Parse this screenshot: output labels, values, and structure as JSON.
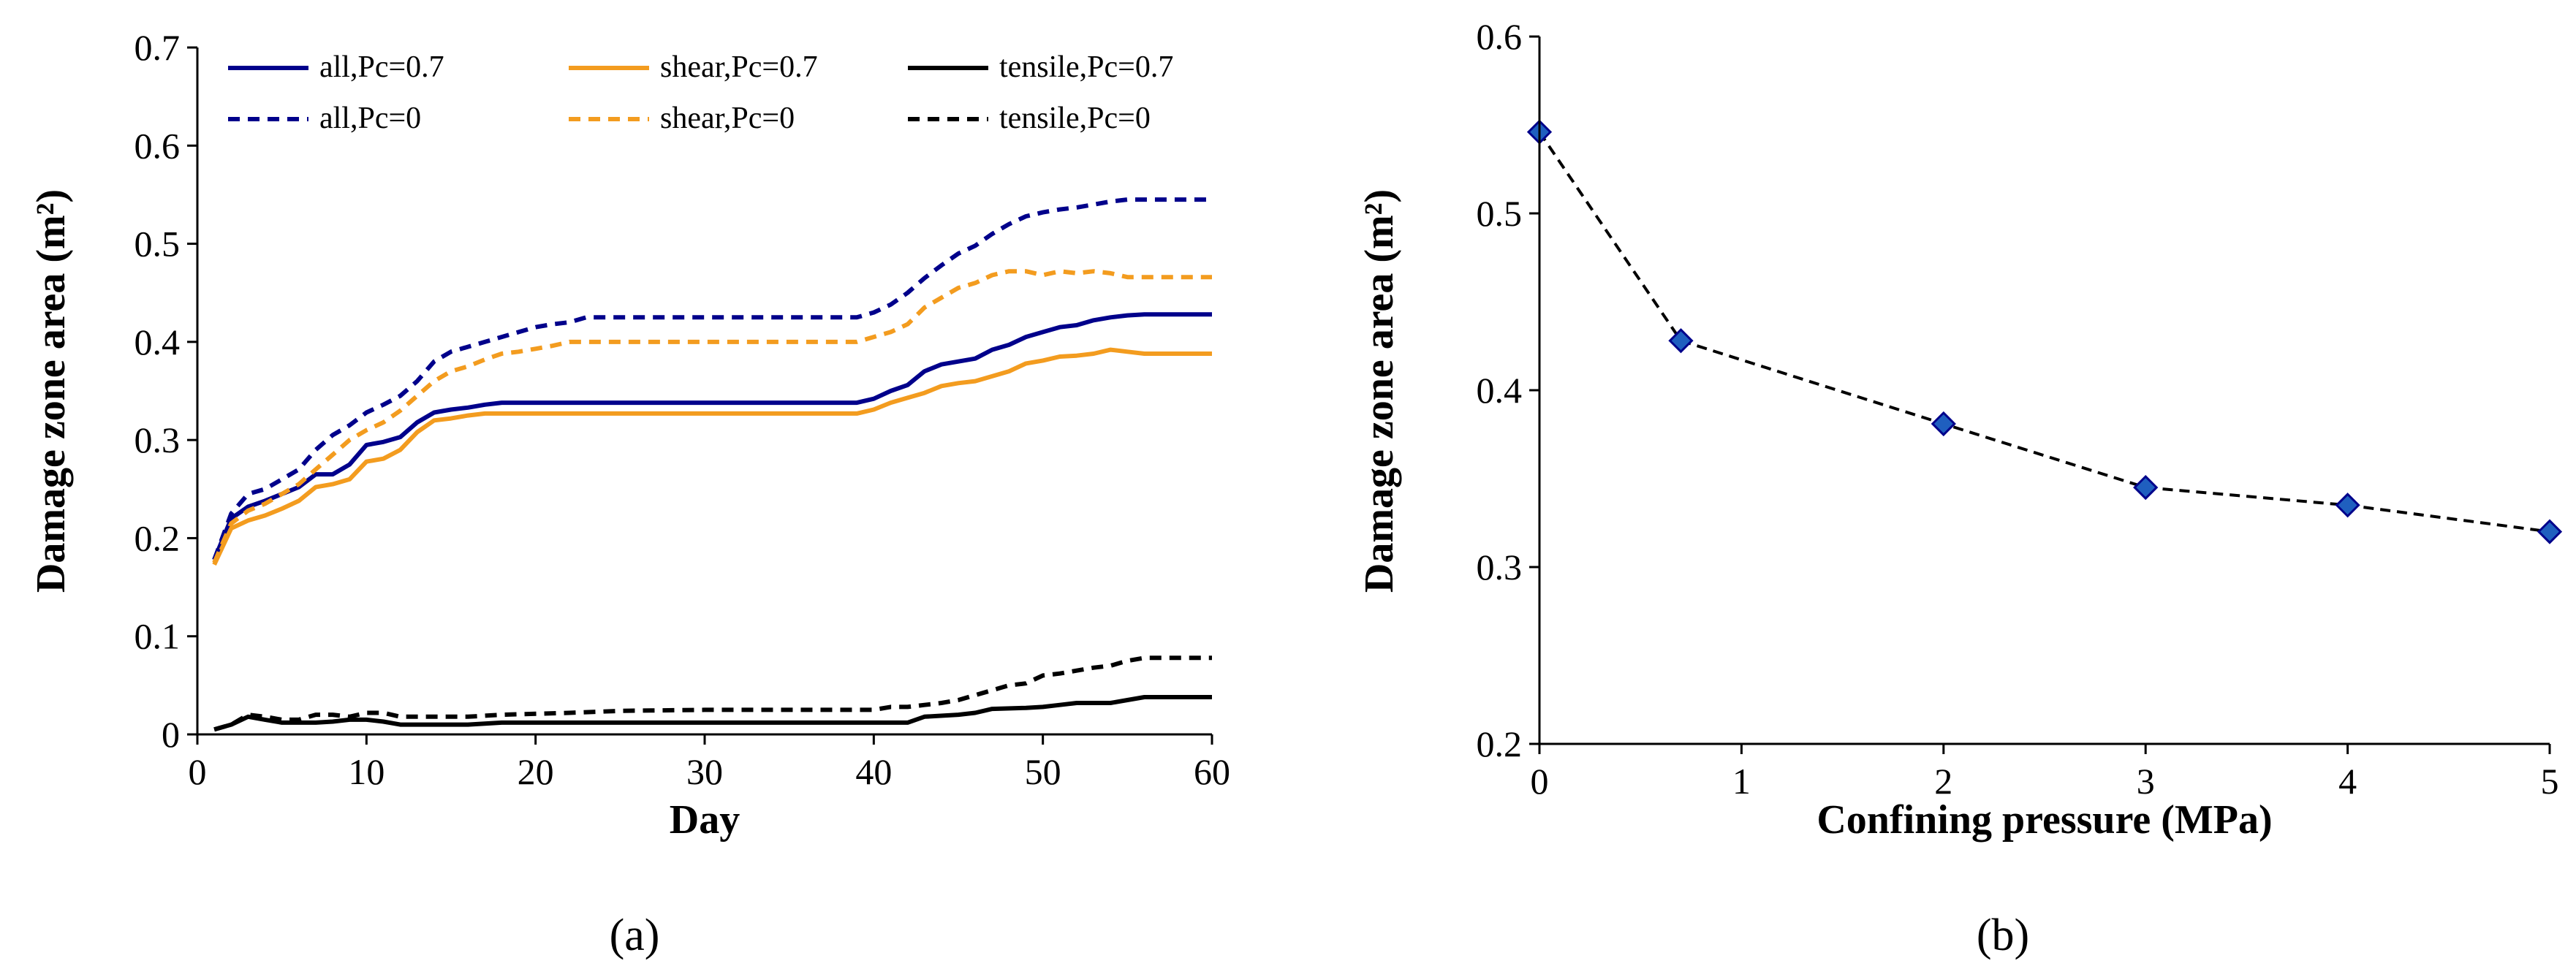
{
  "chart_data": [
    {
      "panel": "(a)",
      "type": "line",
      "xlabel": "Day",
      "ylabel": "Damage zone area (m²)",
      "xlim": [
        0,
        60
      ],
      "ylim": [
        0,
        0.7
      ],
      "xticks": [
        "0",
        "10",
        "20",
        "30",
        "40",
        "50",
        "60"
      ],
      "yticks": [
        "0",
        "0.1",
        "0.2",
        "0.3",
        "0.4",
        "0.5",
        "0.6",
        "0.7"
      ],
      "grid": false,
      "legend_position": "top",
      "series": [
        {
          "name": "all,Pc=0.7",
          "color": "#00008b",
          "dash": "solid",
          "points": [
            [
              1,
              0.178
            ],
            [
              2,
              0.22
            ],
            [
              3,
              0.232
            ],
            [
              4,
              0.238
            ],
            [
              5,
              0.245
            ],
            [
              6,
              0.252
            ],
            [
              7,
              0.265
            ],
            [
              8,
              0.265
            ],
            [
              9,
              0.275
            ],
            [
              10,
              0.295
            ],
            [
              11,
              0.298
            ],
            [
              12,
              0.303
            ],
            [
              13,
              0.318
            ],
            [
              14,
              0.328
            ],
            [
              15,
              0.331
            ],
            [
              16,
              0.333
            ],
            [
              17,
              0.336
            ],
            [
              18,
              0.338
            ],
            [
              20,
              0.338
            ],
            [
              30,
              0.338
            ],
            [
              39,
              0.338
            ],
            [
              40,
              0.342
            ],
            [
              41,
              0.35
            ],
            [
              42,
              0.356
            ],
            [
              43,
              0.37
            ],
            [
              44,
              0.377
            ],
            [
              45,
              0.38
            ],
            [
              46,
              0.383
            ],
            [
              47,
              0.392
            ],
            [
              48,
              0.397
            ],
            [
              49,
              0.405
            ],
            [
              50,
              0.41
            ],
            [
              51,
              0.415
            ],
            [
              52,
              0.417
            ],
            [
              53,
              0.422
            ],
            [
              54,
              0.425
            ],
            [
              55,
              0.427
            ],
            [
              56,
              0.428
            ],
            [
              60,
              0.428
            ]
          ]
        },
        {
          "name": "shear,Pc=0.7",
          "color": "#f39c1f",
          "dash": "solid",
          "points": [
            [
              1,
              0.173
            ],
            [
              2,
              0.21
            ],
            [
              3,
              0.218
            ],
            [
              4,
              0.223
            ],
            [
              5,
              0.23
            ],
            [
              6,
              0.238
            ],
            [
              7,
              0.252
            ],
            [
              8,
              0.255
            ],
            [
              9,
              0.26
            ],
            [
              10,
              0.278
            ],
            [
              11,
              0.281
            ],
            [
              12,
              0.29
            ],
            [
              13,
              0.308
            ],
            [
              14,
              0.32
            ],
            [
              15,
              0.322
            ],
            [
              16,
              0.325
            ],
            [
              17,
              0.327
            ],
            [
              18,
              0.327
            ],
            [
              30,
              0.327
            ],
            [
              39,
              0.327
            ],
            [
              40,
              0.331
            ],
            [
              41,
              0.338
            ],
            [
              42,
              0.343
            ],
            [
              43,
              0.348
            ],
            [
              44,
              0.355
            ],
            [
              45,
              0.358
            ],
            [
              46,
              0.36
            ],
            [
              47,
              0.365
            ],
            [
              48,
              0.37
            ],
            [
              49,
              0.378
            ],
            [
              50,
              0.381
            ],
            [
              51,
              0.385
            ],
            [
              52,
              0.386
            ],
            [
              53,
              0.388
            ],
            [
              54,
              0.392
            ],
            [
              55,
              0.39
            ],
            [
              56,
              0.388
            ],
            [
              60,
              0.388
            ]
          ]
        },
        {
          "name": "tensile,Pc=0.7",
          "color": "#000000",
          "dash": "solid",
          "points": [
            [
              1,
              0.005
            ],
            [
              2,
              0.01
            ],
            [
              3,
              0.018
            ],
            [
              4,
              0.015
            ],
            [
              5,
              0.012
            ],
            [
              6,
              0.012
            ],
            [
              7,
              0.012
            ],
            [
              8,
              0.013
            ],
            [
              9,
              0.015
            ],
            [
              10,
              0.015
            ],
            [
              11,
              0.013
            ],
            [
              12,
              0.01
            ],
            [
              14,
              0.01
            ],
            [
              16,
              0.01
            ],
            [
              18,
              0.012
            ],
            [
              30,
              0.012
            ],
            [
              41,
              0.012
            ],
            [
              42,
              0.012
            ],
            [
              43,
              0.018
            ],
            [
              45,
              0.02
            ],
            [
              46,
              0.022
            ],
            [
              47,
              0.026
            ],
            [
              49,
              0.027
            ],
            [
              50,
              0.028
            ],
            [
              51,
              0.03
            ],
            [
              52,
              0.032
            ],
            [
              53,
              0.032
            ],
            [
              54,
              0.032
            ],
            [
              55,
              0.035
            ],
            [
              56,
              0.038
            ],
            [
              60,
              0.038
            ]
          ]
        },
        {
          "name": "all,Pc=0",
          "color": "#00008b",
          "dash": "dashed",
          "points": [
            [
              1,
              0.178
            ],
            [
              2,
              0.225
            ],
            [
              3,
              0.245
            ],
            [
              4,
              0.25
            ],
            [
              5,
              0.26
            ],
            [
              6,
              0.27
            ],
            [
              7,
              0.29
            ],
            [
              8,
              0.305
            ],
            [
              9,
              0.315
            ],
            [
              10,
              0.328
            ],
            [
              11,
              0.336
            ],
            [
              12,
              0.345
            ],
            [
              13,
              0.36
            ],
            [
              14,
              0.38
            ],
            [
              15,
              0.39
            ],
            [
              16,
              0.395
            ],
            [
              17,
              0.4
            ],
            [
              18,
              0.405
            ],
            [
              19,
              0.41
            ],
            [
              20,
              0.415
            ],
            [
              21,
              0.418
            ],
            [
              22,
              0.42
            ],
            [
              23,
              0.425
            ],
            [
              30,
              0.425
            ],
            [
              39,
              0.425
            ],
            [
              40,
              0.43
            ],
            [
              41,
              0.438
            ],
            [
              42,
              0.45
            ],
            [
              43,
              0.465
            ],
            [
              44,
              0.478
            ],
            [
              45,
              0.49
            ],
            [
              46,
              0.498
            ],
            [
              47,
              0.51
            ],
            [
              48,
              0.52
            ],
            [
              49,
              0.528
            ],
            [
              50,
              0.532
            ],
            [
              51,
              0.535
            ],
            [
              52,
              0.537
            ],
            [
              53,
              0.54
            ],
            [
              54,
              0.543
            ],
            [
              55,
              0.545
            ],
            [
              60,
              0.545
            ]
          ]
        },
        {
          "name": "shear,Pc=0",
          "color": "#f39c1f",
          "dash": "dashed",
          "points": [
            [
              1,
              0.175
            ],
            [
              2,
              0.215
            ],
            [
              3,
              0.228
            ],
            [
              4,
              0.235
            ],
            [
              5,
              0.245
            ],
            [
              6,
              0.255
            ],
            [
              7,
              0.27
            ],
            [
              8,
              0.285
            ],
            [
              9,
              0.3
            ],
            [
              10,
              0.31
            ],
            [
              11,
              0.318
            ],
            [
              12,
              0.33
            ],
            [
              13,
              0.345
            ],
            [
              14,
              0.36
            ],
            [
              15,
              0.37
            ],
            [
              16,
              0.375
            ],
            [
              17,
              0.382
            ],
            [
              18,
              0.388
            ],
            [
              19,
              0.39
            ],
            [
              20,
              0.393
            ],
            [
              21,
              0.396
            ],
            [
              22,
              0.4
            ],
            [
              30,
              0.4
            ],
            [
              39,
              0.4
            ],
            [
              40,
              0.405
            ],
            [
              41,
              0.41
            ],
            [
              42,
              0.418
            ],
            [
              43,
              0.435
            ],
            [
              44,
              0.445
            ],
            [
              45,
              0.455
            ],
            [
              46,
              0.46
            ],
            [
              47,
              0.468
            ],
            [
              48,
              0.472
            ],
            [
              49,
              0.472
            ],
            [
              50,
              0.468
            ],
            [
              51,
              0.472
            ],
            [
              52,
              0.47
            ],
            [
              53,
              0.472
            ],
            [
              54,
              0.47
            ],
            [
              55,
              0.466
            ],
            [
              56,
              0.466
            ],
            [
              60,
              0.466
            ]
          ]
        },
        {
          "name": "tensile,Pc=0",
          "color": "#000000",
          "dash": "dashed",
          "points": [
            [
              1,
              0.005
            ],
            [
              2,
              0.01
            ],
            [
              3,
              0.02
            ],
            [
              4,
              0.018
            ],
            [
              5,
              0.015
            ],
            [
              6,
              0.015
            ],
            [
              7,
              0.02
            ],
            [
              8,
              0.02
            ],
            [
              9,
              0.018
            ],
            [
              10,
              0.022
            ],
            [
              11,
              0.022
            ],
            [
              12,
              0.018
            ],
            [
              14,
              0.018
            ],
            [
              16,
              0.018
            ],
            [
              18,
              0.02
            ],
            [
              22,
              0.022
            ],
            [
              25,
              0.024
            ],
            [
              30,
              0.025
            ],
            [
              40,
              0.025
            ],
            [
              41,
              0.028
            ],
            [
              42,
              0.028
            ],
            [
              43,
              0.03
            ],
            [
              44,
              0.032
            ],
            [
              45,
              0.035
            ],
            [
              46,
              0.04
            ],
            [
              47,
              0.045
            ],
            [
              48,
              0.05
            ],
            [
              49,
              0.052
            ],
            [
              50,
              0.06
            ],
            [
              51,
              0.062
            ],
            [
              52,
              0.065
            ],
            [
              53,
              0.068
            ],
            [
              54,
              0.07
            ],
            [
              55,
              0.075
            ],
            [
              56,
              0.078
            ],
            [
              60,
              0.078
            ]
          ]
        }
      ]
    },
    {
      "panel": "(b)",
      "type": "line",
      "xlabel": "Confining pressure (MPa)",
      "ylabel": "Damage zone area (m²)",
      "xlim": [
        0,
        5
      ],
      "ylim": [
        0.2,
        0.6
      ],
      "xticks": [
        "0",
        "1",
        "2",
        "3",
        "4",
        "5"
      ],
      "yticks": [
        "0.2",
        "0.3",
        "0.4",
        "0.5",
        "0.6"
      ],
      "grid": false,
      "series": [
        {
          "name": "damage zone area",
          "line_color": "#000000",
          "dash": "dashed",
          "marker": "diamond",
          "marker_color": "#1f5fbf",
          "marker_edge": "#00008b",
          "points": [
            [
              0,
              0.546
            ],
            [
              0.7,
              0.428
            ],
            [
              2,
              0.381
            ],
            [
              3,
              0.345
            ],
            [
              4,
              0.335
            ],
            [
              5,
              0.32
            ]
          ]
        }
      ]
    }
  ]
}
